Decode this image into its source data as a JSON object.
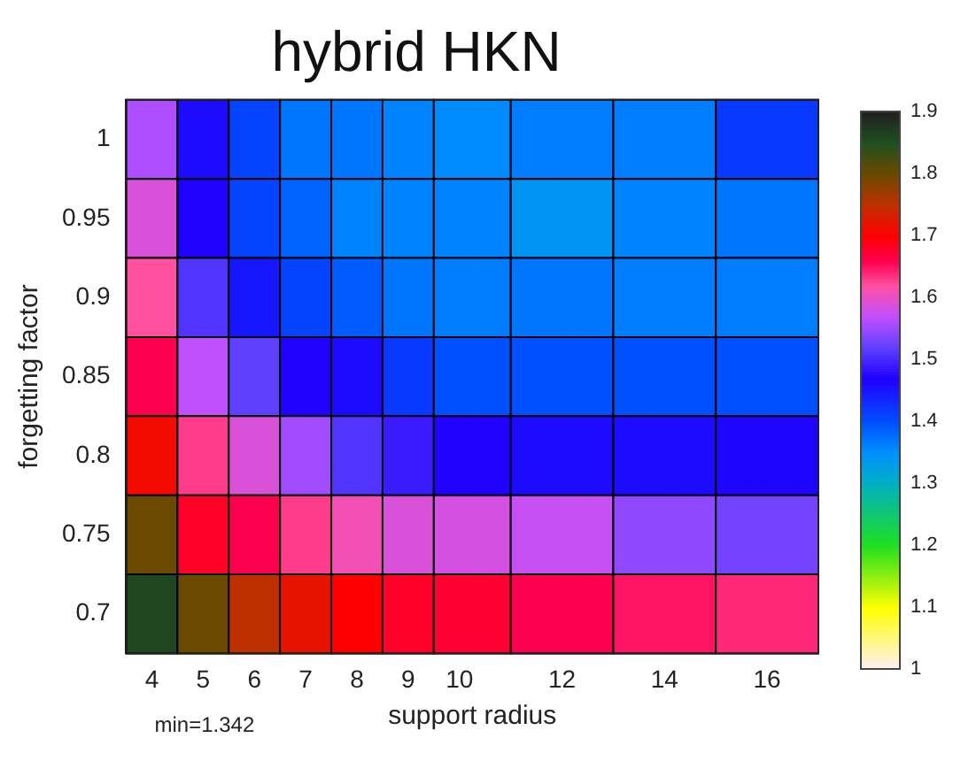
{
  "chart_data": {
    "type": "heatmap",
    "title": "hybrid HKN",
    "xlabel": "support radius",
    "ylabel": "forgetting factor",
    "x": [
      4,
      5,
      6,
      7,
      8,
      9,
      10,
      12,
      14,
      16
    ],
    "xlim": [
      3.5,
      17
    ],
    "xticks": [
      4,
      5,
      6,
      7,
      8,
      9,
      10,
      12,
      14,
      16
    ],
    "y_categories": [
      "1",
      "0.95",
      "0.9",
      "0.85",
      "0.8",
      "0.75",
      "0.7"
    ],
    "cells": [
      [
        1.56,
        1.46,
        1.41,
        1.37,
        1.37,
        1.36,
        1.355,
        1.365,
        1.365,
        1.42
      ],
      [
        1.59,
        1.47,
        1.41,
        1.385,
        1.36,
        1.36,
        1.36,
        1.342,
        1.36,
        1.37
      ],
      [
        1.62,
        1.51,
        1.45,
        1.41,
        1.39,
        1.37,
        1.365,
        1.37,
        1.365,
        1.365
      ],
      [
        1.66,
        1.57,
        1.52,
        1.47,
        1.46,
        1.42,
        1.4,
        1.4,
        1.4,
        1.4
      ],
      [
        1.71,
        1.63,
        1.59,
        1.555,
        1.51,
        1.49,
        1.47,
        1.46,
        1.46,
        1.465
      ],
      [
        1.8,
        1.68,
        1.66,
        1.63,
        1.61,
        1.59,
        1.585,
        1.575,
        1.545,
        1.53
      ],
      [
        1.86,
        1.8,
        1.75,
        1.72,
        1.7,
        1.68,
        1.675,
        1.66,
        1.65,
        1.64
      ]
    ],
    "clim": [
      1,
      1.9
    ],
    "cticks": [
      1,
      1.1,
      1.2,
      1.3,
      1.4,
      1.5,
      1.6,
      1.7,
      1.8,
      1.9
    ],
    "annotations": [
      "min=1.342"
    ]
  }
}
